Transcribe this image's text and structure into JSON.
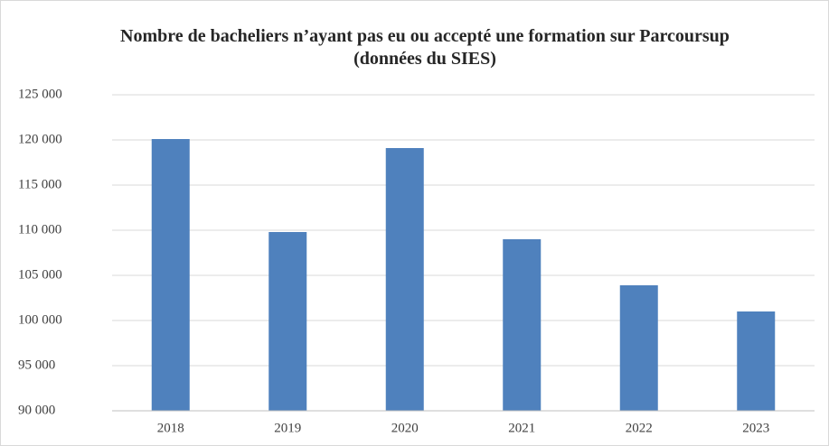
{
  "chart_data": {
    "type": "bar",
    "title": "Nombre de bacheliers n’ayant pas eu ou accepté une formation sur Parcoursup  (données du SIES)",
    "categories": [
      "2018",
      "2019",
      "2020",
      "2021",
      "2022",
      "2023"
    ],
    "values": [
      120100,
      109800,
      119100,
      109000,
      103900,
      101000
    ],
    "color": "#4f81bd",
    "ylim": [
      90000,
      125000
    ],
    "yticks": [
      {
        "value": 90000,
        "label": "90 000"
      },
      {
        "value": 95000,
        "label": "95 000"
      },
      {
        "value": 100000,
        "label": "100 000"
      },
      {
        "value": 105000,
        "label": "105 000"
      },
      {
        "value": 110000,
        "label": "110 000"
      },
      {
        "value": 115000,
        "label": "115 000"
      },
      {
        "value": 120000,
        "label": "120 000"
      },
      {
        "value": 125000,
        "label": "125 000"
      }
    ],
    "grid": true
  }
}
